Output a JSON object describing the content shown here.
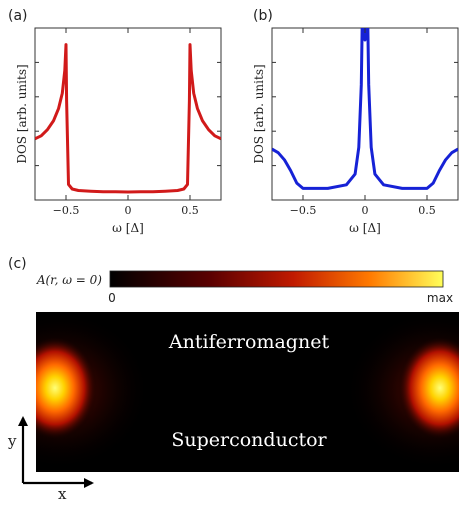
{
  "panels": {
    "a": "(a)",
    "b": "(b)",
    "c": "(c)"
  },
  "colors": {
    "panel_a_line": "#d11a1a",
    "panel_b_line": "#1622d6"
  },
  "chart_data": [
    {
      "panel": "(a)",
      "type": "line",
      "xlabel": "ω [Δ]",
      "ylabel": "DOS [arb. units]",
      "xlim": [
        -0.75,
        0.75
      ],
      "xticks": [
        -0.5,
        0,
        0.5
      ],
      "xtick_labels": [
        "−0.5",
        "0",
        "0.5"
      ],
      "color": "#d11a1a",
      "x": [
        -0.75,
        -0.7,
        -0.65,
        -0.6,
        -0.56,
        -0.53,
        -0.51,
        -0.5,
        -0.495,
        -0.48,
        -0.45,
        -0.4,
        -0.3,
        -0.2,
        -0.1,
        0,
        0.1,
        0.2,
        0.3,
        0.4,
        0.45,
        0.48,
        0.495,
        0.5,
        0.51,
        0.53,
        0.56,
        0.6,
        0.65,
        0.7,
        0.75
      ],
      "y": [
        0.35,
        0.37,
        0.41,
        0.47,
        0.55,
        0.65,
        0.8,
        0.97,
        0.6,
        0.05,
        0.02,
        0.01,
        0.005,
        0.002,
        0.001,
        0,
        0.001,
        0.002,
        0.005,
        0.01,
        0.02,
        0.05,
        0.6,
        0.97,
        0.8,
        0.65,
        0.55,
        0.47,
        0.41,
        0.37,
        0.35
      ]
    },
    {
      "panel": "(b)",
      "type": "line",
      "xlabel": "ω [Δ]",
      "ylabel": "DOS [arb. units]",
      "xlim": [
        -0.75,
        0.75
      ],
      "xticks": [
        -0.5,
        0,
        0.5
      ],
      "xtick_labels": [
        "−0.5",
        "0",
        "0.5"
      ],
      "color": "#1622d6",
      "x": [
        -0.75,
        -0.7,
        -0.65,
        -0.6,
        -0.55,
        -0.5,
        -0.45,
        -0.3,
        -0.15,
        -0.08,
        -0.05,
        -0.03,
        -0.02,
        0,
        0.02,
        0.03,
        0.05,
        0.08,
        0.15,
        0.3,
        0.45,
        0.5,
        0.55,
        0.6,
        0.65,
        0.7,
        0.75
      ],
      "y": [
        0.24,
        0.22,
        0.18,
        0.12,
        0.05,
        0.02,
        0.02,
        0.02,
        0.04,
        0.1,
        0.25,
        0.6,
        1.05,
        0.85,
        1.05,
        0.6,
        0.25,
        0.1,
        0.04,
        0.02,
        0.02,
        0.02,
        0.05,
        0.12,
        0.18,
        0.22,
        0.24
      ]
    },
    {
      "panel": "(c)",
      "type": "heatmap",
      "colorbar_label": "A(r, ω = 0)",
      "colorbar_min_label": "0",
      "colorbar_max_label": "max",
      "regions": [
        "Antiferromagnet",
        "Superconductor"
      ],
      "axes": [
        "x",
        "y"
      ]
    }
  ]
}
